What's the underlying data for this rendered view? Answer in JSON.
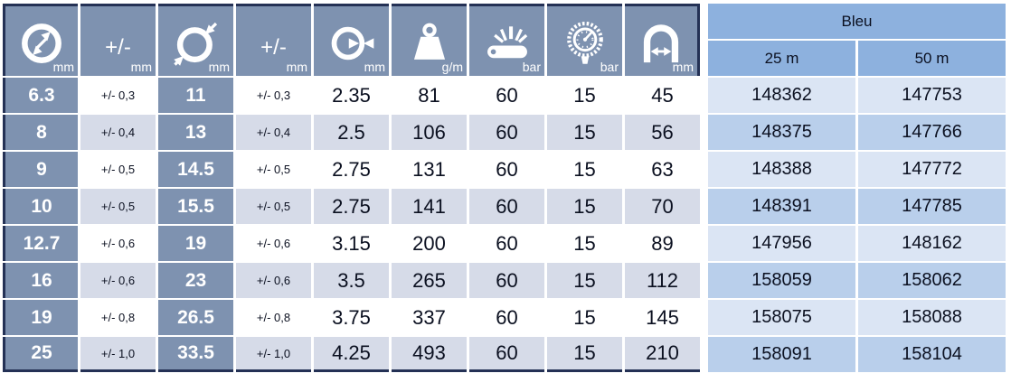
{
  "table": {
    "header": {
      "columns": [
        {
          "icon": "inner-diameter-icon",
          "unit": "mm"
        },
        {
          "label": "+/-",
          "unit": "mm"
        },
        {
          "icon": "outer-diameter-icon",
          "unit": "mm"
        },
        {
          "label": "+/-",
          "unit": "mm"
        },
        {
          "icon": "wall-thickness-icon",
          "unit": "mm"
        },
        {
          "icon": "weight-icon",
          "unit": "g/m"
        },
        {
          "icon": "burst-pressure-icon",
          "unit": "bar"
        },
        {
          "icon": "pressure-gauge-icon",
          "unit": "bar"
        },
        {
          "icon": "bend-radius-icon",
          "unit": "mm"
        }
      ],
      "color_group": {
        "title": "Bleu",
        "lengths": [
          "25 m",
          "50 m"
        ]
      }
    },
    "rows": [
      {
        "id_mm": "6.3",
        "id_tol": "+/- 0,3",
        "od_mm": "11",
        "od_tol": "+/- 0,3",
        "wall_mm": "2.35",
        "weight_g_m": "81",
        "burst_bar": "60",
        "work_bar": "15",
        "bend_mm": "45",
        "ref_25m": "148362",
        "ref_50m": "147753"
      },
      {
        "id_mm": "8",
        "id_tol": "+/- 0,4",
        "od_mm": "13",
        "od_tol": "+/- 0,4",
        "wall_mm": "2.5",
        "weight_g_m": "106",
        "burst_bar": "60",
        "work_bar": "15",
        "bend_mm": "56",
        "ref_25m": "148375",
        "ref_50m": "147766"
      },
      {
        "id_mm": "9",
        "id_tol": "+/- 0,5",
        "od_mm": "14.5",
        "od_tol": "+/- 0,5",
        "wall_mm": "2.75",
        "weight_g_m": "131",
        "burst_bar": "60",
        "work_bar": "15",
        "bend_mm": "63",
        "ref_25m": "148388",
        "ref_50m": "147772"
      },
      {
        "id_mm": "10",
        "id_tol": "+/- 0,5",
        "od_mm": "15.5",
        "od_tol": "+/- 0,5",
        "wall_mm": "2.75",
        "weight_g_m": "141",
        "burst_bar": "60",
        "work_bar": "15",
        "bend_mm": "70",
        "ref_25m": "148391",
        "ref_50m": "147785"
      },
      {
        "id_mm": "12.7",
        "id_tol": "+/- 0,6",
        "od_mm": "19",
        "od_tol": "+/- 0,6",
        "wall_mm": "3.15",
        "weight_g_m": "200",
        "burst_bar": "60",
        "work_bar": "15",
        "bend_mm": "89",
        "ref_25m": "147956",
        "ref_50m": "148162"
      },
      {
        "id_mm": "16",
        "id_tol": "+/- 0,6",
        "od_mm": "23",
        "od_tol": "+/- 0,6",
        "wall_mm": "3.5",
        "weight_g_m": "265",
        "burst_bar": "60",
        "work_bar": "15",
        "bend_mm": "112",
        "ref_25m": "158059",
        "ref_50m": "158062"
      },
      {
        "id_mm": "19",
        "id_tol": "+/- 0,8",
        "od_mm": "26.5",
        "od_tol": "+/- 0,8",
        "wall_mm": "3.75",
        "weight_g_m": "337",
        "burst_bar": "60",
        "work_bar": "15",
        "bend_mm": "145",
        "ref_25m": "158075",
        "ref_50m": "158088"
      },
      {
        "id_mm": "25",
        "id_tol": "+/- 1,0",
        "od_mm": "33.5",
        "od_tol": "+/- 1,0",
        "wall_mm": "4.25",
        "weight_g_m": "493",
        "burst_bar": "60",
        "work_bar": "15",
        "bend_mm": "210",
        "ref_25m": "158091",
        "ref_50m": "158104"
      }
    ]
  },
  "colors": {
    "slate_header": "#7e92b0",
    "navy_border": "#243155",
    "row_alt": "#d6dbe8",
    "blue_header": "#8db1de",
    "blue_row_light": "#dbe5f4",
    "blue_row_dark": "#b9cfeb",
    "text_dark": "#0b1020"
  }
}
